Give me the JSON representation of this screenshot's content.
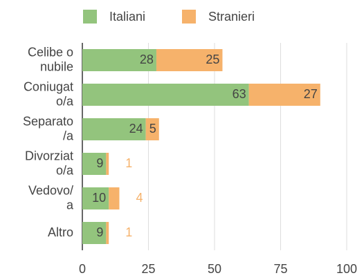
{
  "chart_data": {
    "type": "stacked_barh",
    "categories": [
      [
        "Celibe o",
        "nubile"
      ],
      [
        "Coniugat",
        "o/a"
      ],
      [
        "Separato",
        "/a"
      ],
      [
        "Divorziat",
        "o/a"
      ],
      [
        "Vedovo/",
        "a"
      ],
      [
        "Altro"
      ]
    ],
    "series": [
      {
        "name": "Italiani",
        "color": "#93c47d",
        "values": [
          28,
          63,
          24,
          9,
          10,
          9
        ]
      },
      {
        "name": "Stranieri",
        "color": "#f6b26b",
        "values": [
          25,
          27,
          5,
          1,
          4,
          1
        ]
      }
    ],
    "xlim": [
      0,
      100
    ],
    "xticks": [
      0,
      25,
      50,
      75,
      100
    ],
    "grid": true,
    "legend": "top"
  }
}
